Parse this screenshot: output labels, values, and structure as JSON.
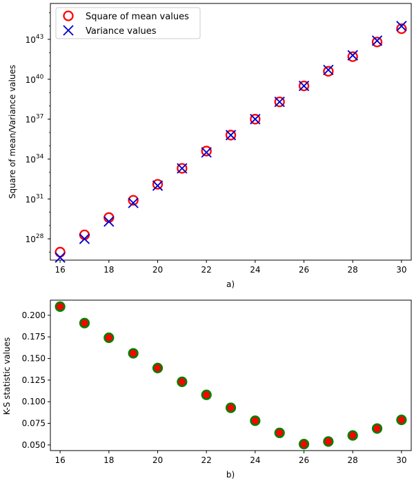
{
  "chart_data": [
    {
      "type": "scatter",
      "id": "a",
      "caption": "a)",
      "ylabel": "Square of mean/Variance values",
      "yscale": "log",
      "x": [
        16,
        17,
        18,
        19,
        20,
        21,
        22,
        23,
        24,
        25,
        26,
        27,
        28,
        29,
        30
      ],
      "xlim": [
        15.6,
        30.4
      ],
      "ylim_log10": [
        26.4,
        45.7
      ],
      "xticks": [
        "16",
        "18",
        "20",
        "22",
        "24",
        "26",
        "28",
        "30"
      ],
      "yticks": [
        {
          "base": "10",
          "exp": "28",
          "log10": 28
        },
        {
          "base": "10",
          "exp": "31",
          "log10": 31
        },
        {
          "base": "10",
          "exp": "34",
          "log10": 34
        },
        {
          "base": "10",
          "exp": "37",
          "log10": 37
        },
        {
          "base": "10",
          "exp": "40",
          "log10": 40
        },
        {
          "base": "10",
          "exp": "43",
          "log10": 43
        }
      ],
      "legend_position": "top-left",
      "series": [
        {
          "name": "Square of mean values",
          "marker": "open-circle",
          "color": "#ff0000",
          "log10_values": [
            27.0,
            28.3,
            29.6,
            30.9,
            32.1,
            33.3,
            34.6,
            35.8,
            37.0,
            38.3,
            39.5,
            40.6,
            41.7,
            42.8,
            43.8
          ]
        },
        {
          "name": "Variance values",
          "marker": "x",
          "color": "#0000cc",
          "log10_values": [
            26.6,
            28.0,
            29.3,
            30.7,
            32.0,
            33.3,
            34.5,
            35.8,
            37.0,
            38.3,
            39.5,
            40.7,
            41.8,
            42.9,
            44.0
          ]
        }
      ]
    },
    {
      "type": "scatter",
      "id": "b",
      "caption": "b)",
      "ylabel": "K-S statistic values",
      "x": [
        16,
        17,
        18,
        19,
        20,
        21,
        22,
        23,
        24,
        25,
        26,
        27,
        28,
        29,
        30
      ],
      "xlim": [
        15.6,
        30.4
      ],
      "ylim": [
        0.0435,
        0.2175
      ],
      "xticks": [
        "16",
        "18",
        "20",
        "22",
        "24",
        "26",
        "28",
        "30"
      ],
      "yticks": [
        "0.050",
        "0.075",
        "0.100",
        "0.125",
        "0.150",
        "0.175",
        "0.200"
      ],
      "marker": "filled-circle",
      "face_color": "#ff0000",
      "edge_color": "#008000",
      "values": [
        0.21,
        0.191,
        0.174,
        0.156,
        0.139,
        0.123,
        0.108,
        0.093,
        0.078,
        0.064,
        0.051,
        0.054,
        0.061,
        0.069,
        0.079
      ]
    }
  ]
}
